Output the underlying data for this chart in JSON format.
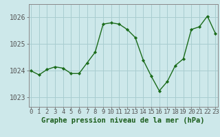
{
  "x": [
    0,
    1,
    2,
    3,
    4,
    5,
    6,
    7,
    8,
    9,
    10,
    11,
    12,
    13,
    14,
    15,
    16,
    17,
    18,
    19,
    20,
    21,
    22,
    23
  ],
  "y": [
    1024.0,
    1023.85,
    1024.05,
    1024.15,
    1024.1,
    1023.9,
    1023.9,
    1024.3,
    1024.7,
    1025.75,
    1025.8,
    1025.75,
    1025.55,
    1025.25,
    1024.4,
    1023.8,
    1023.25,
    1023.6,
    1024.2,
    1024.45,
    1025.55,
    1025.65,
    1026.05,
    1025.4
  ],
  "line_color": "#1a6b1a",
  "marker_color": "#1a6b1a",
  "bg_color": "#cde8ea",
  "grid_color": "#a8cdd0",
  "title": "Graphe pression niveau de la mer (hPa)",
  "xlabel_tick_labels": [
    "0",
    "1",
    "2",
    "3",
    "4",
    "5",
    "6",
    "7",
    "8",
    "9",
    "10",
    "11",
    "12",
    "13",
    "14",
    "15",
    "16",
    "17",
    "18",
    "19",
    "20",
    "21",
    "22",
    "23"
  ],
  "yticks": [
    1023,
    1024,
    1025,
    1026
  ],
  "ylim": [
    1022.65,
    1026.5
  ],
  "xlim": [
    -0.3,
    23.3
  ],
  "title_fontsize": 7.5,
  "tick_fontsize": 6.5,
  "axis_border_color": "#888888"
}
